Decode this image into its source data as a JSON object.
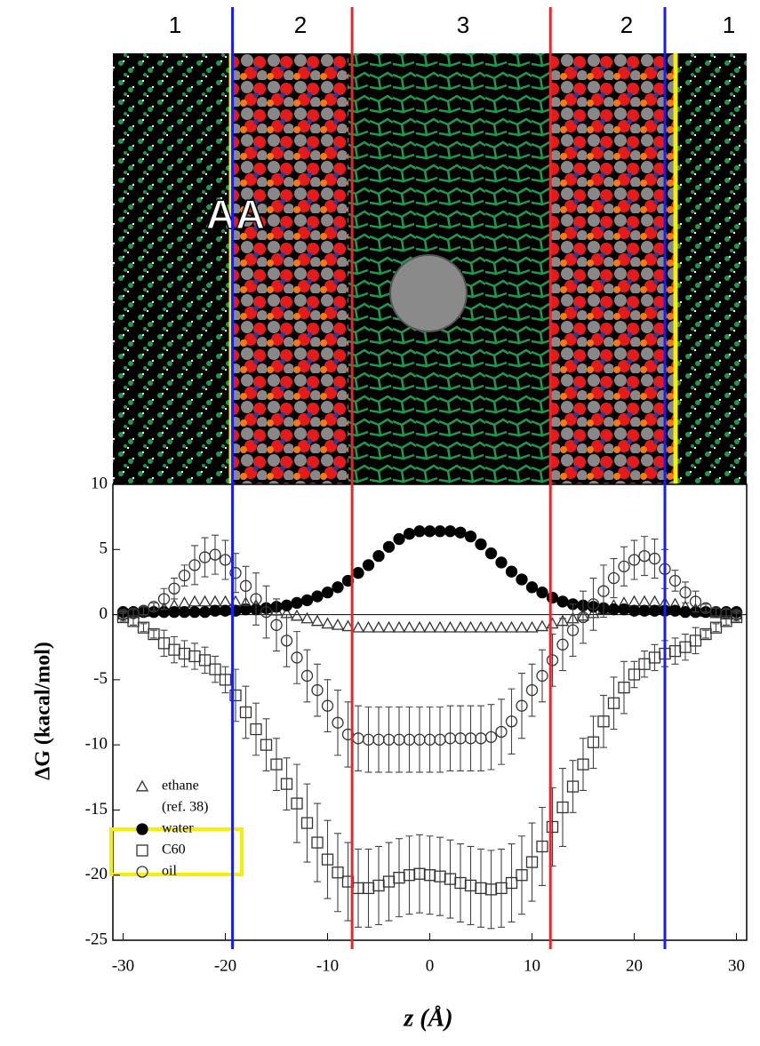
{
  "chart_data": {
    "type": "scatter",
    "region_labels": [
      "1",
      "2",
      "3",
      "2",
      "1"
    ],
    "image_label": "AA",
    "x_label": "z (Å)",
    "y_label": "ΔG (kacal/mol)",
    "xlim": [
      -31,
      31
    ],
    "ylim": [
      -25,
      10
    ],
    "xticks": [
      -30,
      -20,
      -10,
      0,
      10,
      20,
      30
    ],
    "yticks": [
      -25,
      -20,
      -15,
      -10,
      -5,
      0,
      5,
      10
    ],
    "boundaries": [
      {
        "value": -19.3,
        "color": "#1a1aff"
      },
      {
        "value": -7.6,
        "color": "#e8262b"
      },
      {
        "value": 11.8,
        "color": "#e8262b"
      },
      {
        "value": 23,
        "color": "#1a1aff"
      }
    ],
    "x": [
      -30,
      -29,
      -28,
      -27,
      -26,
      -25,
      -24,
      -23,
      -22,
      -21,
      -20,
      -19,
      -18,
      -17,
      -16,
      -15,
      -14,
      -13,
      -12,
      -11,
      -10,
      -9,
      -8,
      -7,
      -6,
      -5,
      -4,
      -3,
      -2,
      -1,
      0,
      1,
      2,
      3,
      4,
      5,
      6,
      7,
      8,
      9,
      10,
      11,
      12,
      13,
      14,
      15,
      16,
      17,
      18,
      19,
      20,
      21,
      22,
      23,
      24,
      25,
      26,
      27,
      28,
      29,
      30
    ],
    "series": [
      {
        "name": "ethane",
        "legend_note": "(ref. 38)",
        "marker": "triangle",
        "color": "#333333",
        "values": [
          0,
          0.1,
          0.2,
          0.3,
          0.5,
          0.7,
          0.9,
          1.0,
          1.0,
          1.0,
          1.0,
          1.0,
          0.9,
          0.7,
          0.5,
          0.3,
          0.1,
          -0.1,
          -0.3,
          -0.5,
          -0.7,
          -0.8,
          -0.9,
          -1.0,
          -1.0,
          -1.0,
          -1.0,
          -1.0,
          -1.0,
          -1.0,
          -1.0,
          -1.0,
          -1.0,
          -1.0,
          -1.0,
          -1.0,
          -1.0,
          -1.0,
          -1.0,
          -1.0,
          -1.0,
          -0.9,
          -0.7,
          -0.5,
          -0.3,
          -0.1,
          0.1,
          0.4,
          0.7,
          0.9,
          1.0,
          1.0,
          1.0,
          0.9,
          0.8,
          0.6,
          0.4,
          0.2,
          0.1,
          0,
          0
        ]
      },
      {
        "name": "water",
        "marker": "filled-circle",
        "color": "#000000",
        "values": [
          0.2,
          0.2,
          0.2,
          0.2,
          0.2,
          0.2,
          0.2,
          0.2,
          0.2,
          0.3,
          0.3,
          0.3,
          0.4,
          0.4,
          0.5,
          0.6,
          0.7,
          0.9,
          1.1,
          1.4,
          1.7,
          2.1,
          2.6,
          3.2,
          3.8,
          4.5,
          5.2,
          5.8,
          6.2,
          6.4,
          6.4,
          6.4,
          6.4,
          6.3,
          6.0,
          5.4,
          4.7,
          4.0,
          3.3,
          2.7,
          2.1,
          1.7,
          1.3,
          1.0,
          0.8,
          0.7,
          0.6,
          0.5,
          0.4,
          0.4,
          0.3,
          0.3,
          0.3,
          0.3,
          0.3,
          0.2,
          0.2,
          0.2,
          0.2,
          0.2,
          0.2
        ]
      },
      {
        "name": "C60",
        "marker": "square",
        "color": "#333333",
        "values": [
          -0.2,
          -0.5,
          -1,
          -1.5,
          -2.2,
          -2.7,
          -3,
          -3.2,
          -3.5,
          -4.2,
          -5,
          -6.2,
          -7.5,
          -8.8,
          -10,
          -11.5,
          -13,
          -14.5,
          -16,
          -17.5,
          -18.8,
          -19.8,
          -20.5,
          -21,
          -21,
          -20.8,
          -20.5,
          -20.2,
          -20,
          -19.9,
          -20,
          -20.1,
          -20.3,
          -20.6,
          -20.8,
          -21,
          -21.1,
          -21,
          -20.6,
          -20,
          -19,
          -17.8,
          -16.3,
          -14.8,
          -13.2,
          -11.5,
          -9.8,
          -8.2,
          -6.8,
          -5.6,
          -4.6,
          -3.8,
          -3.3,
          -3,
          -2.8,
          -2.5,
          -2,
          -1.5,
          -1,
          -0.5,
          -0.2
        ],
        "errors": [
          0.3,
          0.3,
          0.3,
          0.3,
          1,
          1,
          1,
          1,
          1,
          1,
          1,
          2,
          2,
          2,
          2,
          2,
          2,
          3,
          3,
          3,
          3,
          3,
          3,
          3,
          3,
          3,
          3,
          3,
          3,
          3,
          3,
          3,
          3,
          3,
          3,
          3,
          3,
          3,
          3,
          3,
          3,
          3,
          3,
          3,
          2,
          2,
          2,
          2,
          2,
          2,
          1,
          1,
          1,
          1,
          1,
          1,
          1,
          0.3,
          0.3,
          0.3,
          0.3
        ]
      },
      {
        "name": "oil",
        "marker": "circle",
        "color": "#333333",
        "values": [
          0,
          0.1,
          0.3,
          0.6,
          1.2,
          2,
          3,
          3.8,
          4.4,
          4.6,
          4.2,
          3.2,
          2.2,
          1.2,
          0.2,
          -0.8,
          -2,
          -3.3,
          -4.7,
          -5.8,
          -7,
          -8.3,
          -9.2,
          -9.5,
          -9.6,
          -9.6,
          -9.6,
          -9.6,
          -9.6,
          -9.6,
          -9.6,
          -9.6,
          -9.5,
          -9.5,
          -9.5,
          -9.5,
          -9.4,
          -9,
          -8.2,
          -7,
          -5.8,
          -4.7,
          -3.5,
          -2.3,
          -1.2,
          -0.2,
          0.8,
          1.8,
          2.8,
          3.7,
          4.2,
          4.5,
          4.3,
          3.5,
          2.6,
          1.7,
          1,
          0.5,
          0.2,
          0.1,
          0
        ],
        "errors": [
          0.3,
          0.3,
          0.3,
          0.3,
          0.8,
          0.8,
          0.8,
          1.5,
          1.5,
          1.5,
          1.5,
          1.5,
          1.5,
          2,
          2,
          2,
          2,
          2,
          2,
          2,
          2,
          2.5,
          2.5,
          2.5,
          2.5,
          2.5,
          2.5,
          2.5,
          2.5,
          2.5,
          2.5,
          2.5,
          2.5,
          2.5,
          2.5,
          2.5,
          2.5,
          2.5,
          2.5,
          2.5,
          2,
          2,
          2,
          2,
          2,
          2,
          2,
          2,
          1.5,
          1.5,
          1.5,
          1.5,
          1.5,
          1.5,
          0.8,
          0.8,
          0.8,
          0.3,
          0.3,
          0.3,
          0.3
        ]
      }
    ]
  }
}
